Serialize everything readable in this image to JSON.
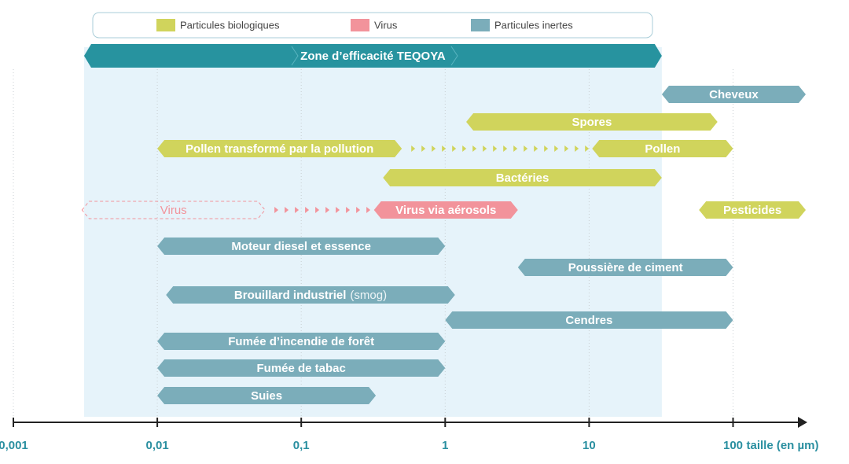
{
  "chart_data": {
    "type": "range",
    "x_scale": "log",
    "xlim": [
      0.001,
      320
    ],
    "xticks": [
      {
        "value": 0.001,
        "label": "0,001"
      },
      {
        "value": 0.01,
        "label": "0,01"
      },
      {
        "value": 0.1,
        "label": "0,1"
      },
      1,
      10,
      100
    ],
    "xlabel": "taille (en µm)",
    "grid": true,
    "series": [
      {
        "name": "Particules biologiques",
        "color": "#d0d45c"
      },
      {
        "name": "Virus",
        "color": "#f2939b"
      },
      {
        "name": "Particules inertes",
        "color": "#7badba"
      }
    ],
    "zone": {
      "label": "Zone d’efficacité TEQOYA",
      "start": 0.0031,
      "end": 32,
      "color": "#27939f",
      "shade": "#e6f3fa"
    },
    "items": [
      {
        "label": "Cheveux",
        "start": 32,
        "end": 320,
        "series": 2
      },
      {
        "label": "Spores",
        "start": 1.4,
        "end": 78,
        "series": 0
      },
      {
        "label": "Pollen transformé par la pollution",
        "start": 0.01,
        "end": 0.5,
        "series": 0
      },
      {
        "label": "Pollen",
        "start": 10.5,
        "end": 100,
        "series": 0
      },
      {
        "label": "Bactéries",
        "start": 0.37,
        "end": 32,
        "series": 0
      },
      {
        "label": "Virus",
        "start": 0.003,
        "end": 0.056,
        "series": 1,
        "style": "dashed"
      },
      {
        "label": "Virus via aérosols",
        "start": 0.32,
        "end": 3.2,
        "series": 1
      },
      {
        "label": "Pesticides",
        "start": 58,
        "end": 320,
        "series": 0
      },
      {
        "label": "Moteur diesel et essence",
        "start": 0.01,
        "end": 1,
        "series": 2
      },
      {
        "label": "Poussière de ciment",
        "start": 3.2,
        "end": 100,
        "series": 2
      },
      {
        "label": "Brouillard industriel",
        "note": "(smog)",
        "start": 0.0115,
        "end": 1.17,
        "series": 2
      },
      {
        "label": "Cendres",
        "start": 1,
        "end": 100,
        "series": 2
      },
      {
        "label": "Fumée d’incendie de forêt",
        "start": 0.01,
        "end": 1,
        "series": 2
      },
      {
        "label": "Fumée de tabac",
        "start": 0.01,
        "end": 1,
        "series": 2
      },
      {
        "label": "Suies",
        "start": 0.01,
        "end": 0.33,
        "series": 2
      }
    ]
  }
}
